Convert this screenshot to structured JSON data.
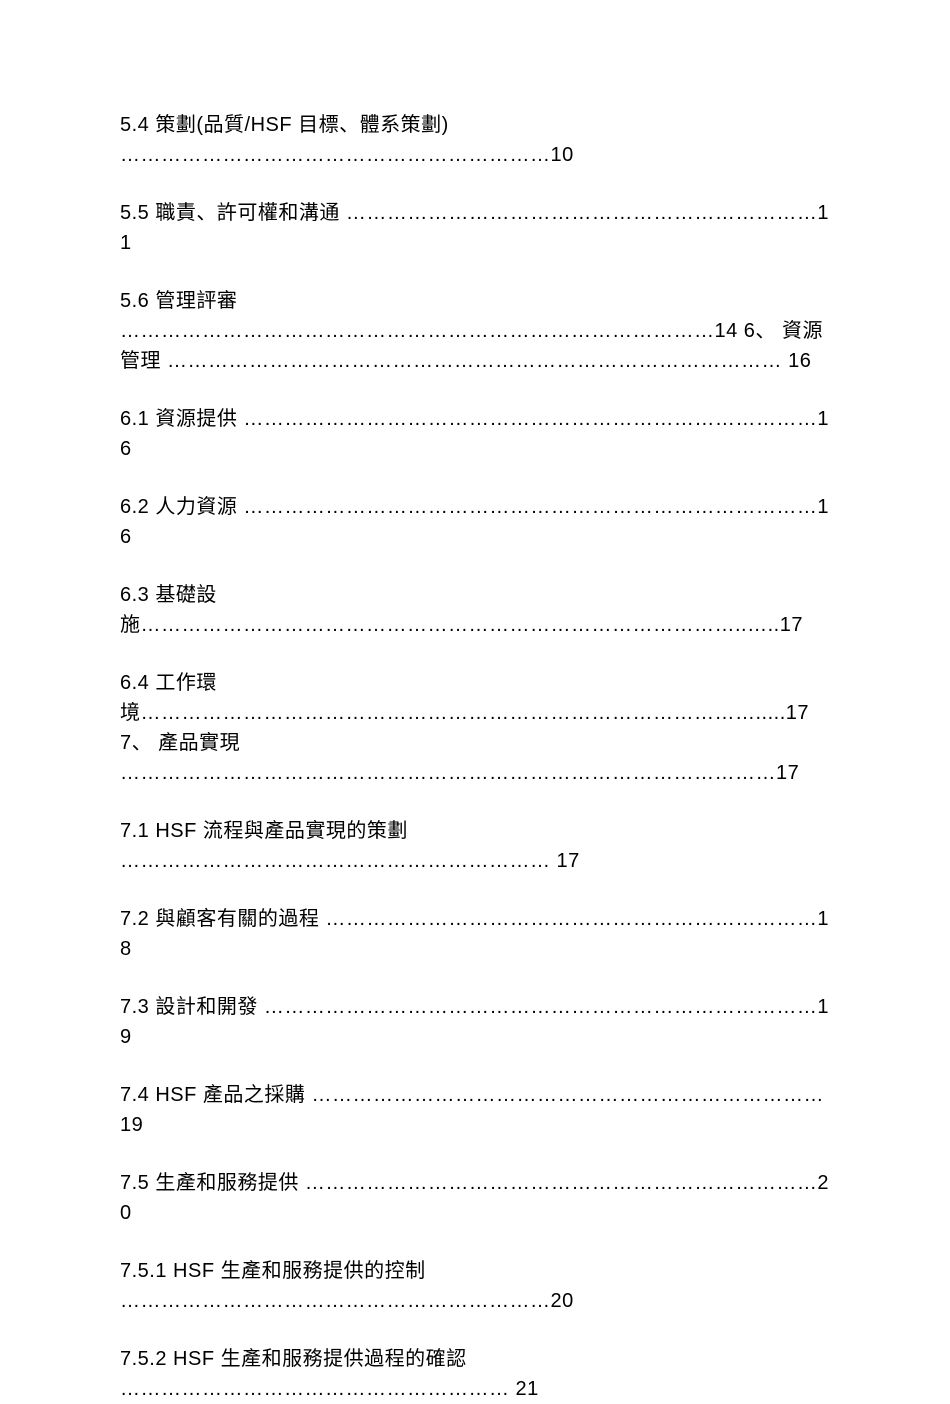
{
  "toc": {
    "background_color": "#ffffff",
    "text_color": "#000000",
    "font_size_pt": 15,
    "lines": [
      "5.4 策劃(品質/HSF 目標、體系策劃) ………………………………………………………10",
      "5.5 職責、許可權和溝通 ……………………………………………………………11",
      "5.6 管理評審 ……………………………………………………………………………14 6、 資源管理 ……………………………………………………………………………… 16",
      "6.1 資源提供 …………………………………………………………………………16",
      "6.2 人力資源 …………………………………………………………………………16",
      "6.3 基礎設施……………………………………………………………………………..…..17",
      "6.4 工作環境……………………………………………………………………………….....17 7、 產品實現 ……………………………………………………………………………………17",
      "7.1 HSF 流程與產品實現的策劃 ……………………………………………………… 17",
      "7.2 與顧客有關的過程 ………………………………………………………………18",
      "7.3 設計和開發 ………………………………………………………………………19",
      "7.4 HSF 產品之採購 …………………………………………………………………19",
      "7.5 生產和服務提供 …………………………………………………………………20",
      "7.5.1 HSF 生產和服務提供的控制 ………………………………………………………20",
      "7.5.2 HSF 生產和服務提供過程的確認 ………………………………………………… 21"
    ]
  }
}
